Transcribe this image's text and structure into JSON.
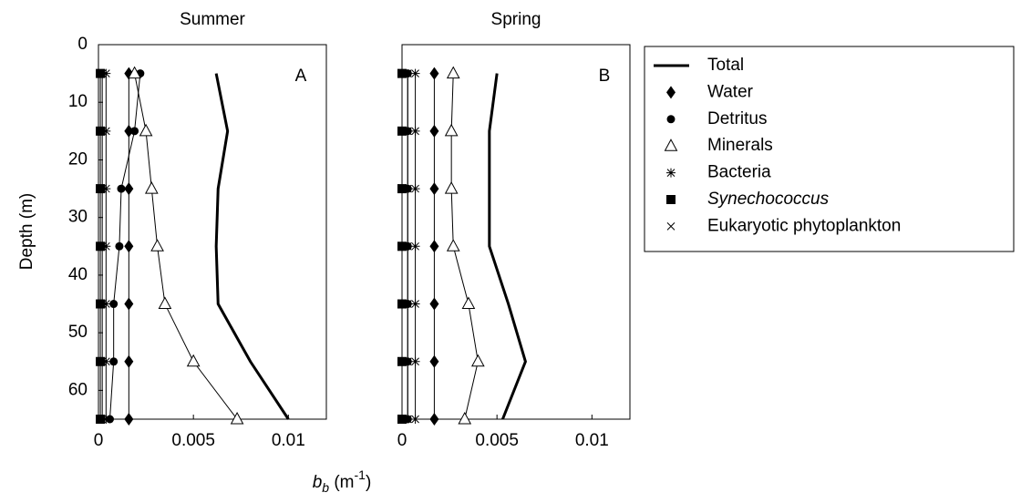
{
  "chart_data": [
    {
      "type": "line",
      "title": "Summer",
      "annotation": "A",
      "ylabel": "Depth (m)",
      "xlabel_parts": [
        "b",
        "b",
        " (m",
        "-1",
        ")"
      ],
      "xlim": [
        0,
        0.012
      ],
      "ylim": [
        0,
        65
      ],
      "y_reversed": true,
      "xticks": [
        0,
        0.005,
        0.01
      ],
      "yticks": [
        0,
        10,
        20,
        30,
        40,
        50,
        60
      ],
      "y": [
        5,
        15,
        25,
        35,
        45,
        55,
        65
      ],
      "series": [
        {
          "name": "Total",
          "color": "#000000",
          "marker": "none",
          "values": [
            0.0062,
            0.0068,
            0.0063,
            0.0062,
            0.0063,
            0.008,
            0.01
          ]
        },
        {
          "name": "Water",
          "color": "#000000",
          "marker": "diamond",
          "values": [
            0.0016,
            0.0016,
            0.0016,
            0.0016,
            0.0016,
            0.0016,
            0.0016
          ]
        },
        {
          "name": "Detritus",
          "color": "#000000",
          "marker": "dot",
          "values": [
            0.0022,
            0.0019,
            0.0012,
            0.0011,
            0.0008,
            0.0008,
            0.0006
          ]
        },
        {
          "name": "Minerals",
          "color": "#000000",
          "marker": "triangle",
          "values": [
            0.0019,
            0.0025,
            0.0028,
            0.0031,
            0.0035,
            0.005,
            0.0073
          ]
        },
        {
          "name": "Bacteria",
          "color": "#000000",
          "marker": "star",
          "values": [
            0.0004,
            0.0004,
            0.0004,
            0.0004,
            0.0004,
            0.0004,
            0.0004
          ]
        },
        {
          "name": "Synechococcus",
          "color": "#000000",
          "marker": "square",
          "italic": true,
          "values": [
            0.0001,
            0.0001,
            0.0001,
            0.0001,
            0.0001,
            0.0001,
            0.0001
          ]
        },
        {
          "name": "Eukaryotic phytoplankton",
          "color": "#000000",
          "marker": "cross",
          "values": [
            0.0002,
            0.0002,
            0.0002,
            0.0002,
            0.0002,
            0.0002,
            0.0002
          ]
        }
      ]
    },
    {
      "type": "line",
      "title": "Spring",
      "annotation": "B",
      "xlim": [
        0,
        0.012
      ],
      "ylim": [
        0,
        65
      ],
      "y_reversed": true,
      "xticks": [
        0,
        0.005,
        0.01
      ],
      "y": [
        5,
        15,
        25,
        35,
        45,
        55,
        65
      ],
      "series": [
        {
          "values": [
            0.005,
            0.0046,
            0.0046,
            0.0046,
            0.0056,
            0.0065,
            0.0053
          ]
        },
        {
          "values": [
            0.0017,
            0.0017,
            0.0017,
            0.0017,
            0.0017,
            0.0017,
            0.0017
          ]
        },
        {
          "values": [
            0.0003,
            0.0003,
            0.0003,
            0.0003,
            0.0003,
            0.0003,
            0.0003
          ]
        },
        {
          "values": [
            0.0027,
            0.0026,
            0.0026,
            0.0027,
            0.0035,
            0.004,
            0.0033
          ]
        },
        {
          "values": [
            0.0007,
            0.0007,
            0.0007,
            0.0007,
            0.0007,
            0.0007,
            0.0007
          ]
        },
        {
          "values": [
            0,
            0,
            0,
            0,
            0,
            0,
            0
          ]
        },
        {
          "values": [
            0.0003,
            0.0003,
            0.0003,
            0.0003,
            0.0003,
            0.0003,
            0.0003
          ]
        }
      ]
    }
  ]
}
